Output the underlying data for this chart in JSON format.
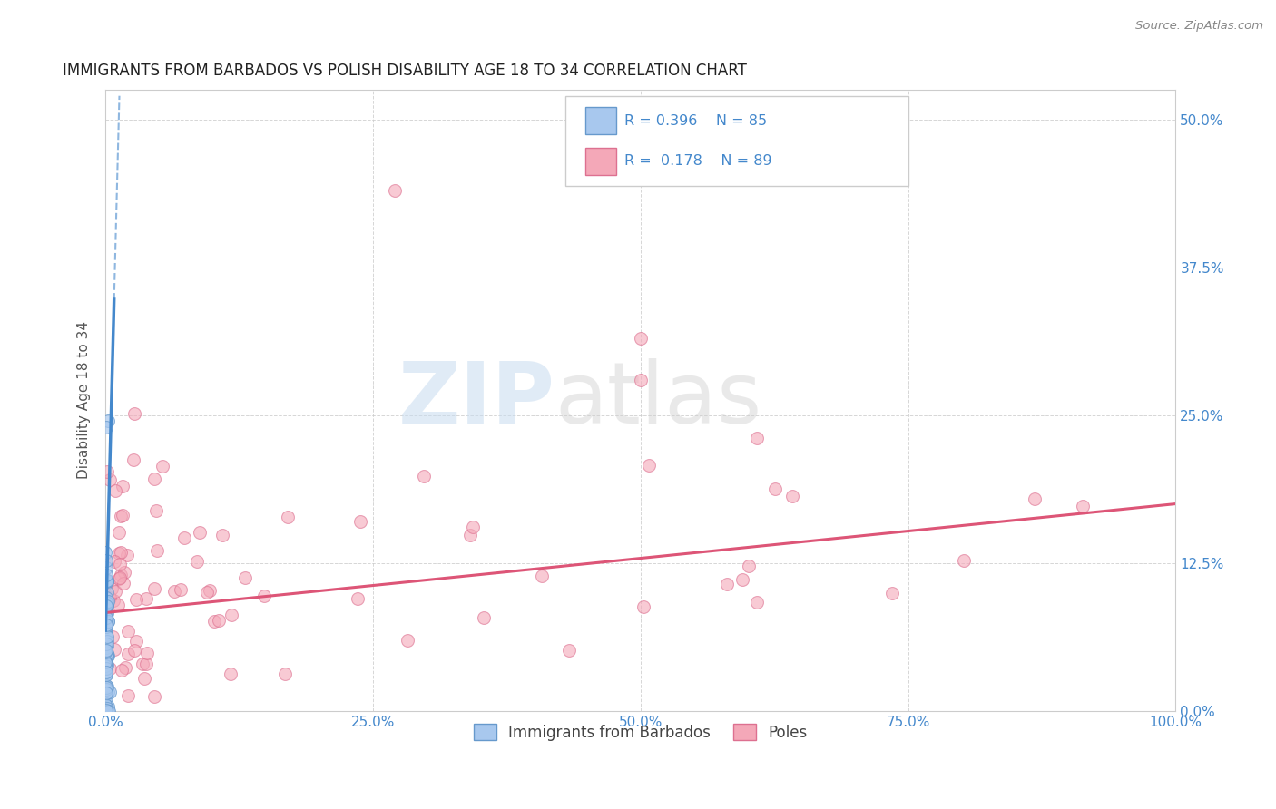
{
  "title": "IMMIGRANTS FROM BARBADOS VS POLISH DISABILITY AGE 18 TO 34 CORRELATION CHART",
  "source": "Source: ZipAtlas.com",
  "ylabel": "Disability Age 18 to 34",
  "xlim": [
    0.0,
    1.0
  ],
  "ylim": [
    0.0,
    0.525
  ],
  "x_ticks": [
    0.0,
    0.25,
    0.5,
    0.75,
    1.0
  ],
  "x_tick_labels": [
    "0.0%",
    "25.0%",
    "50.0%",
    "75.0%",
    "100.0%"
  ],
  "y_ticks": [
    0.0,
    0.125,
    0.25,
    0.375,
    0.5
  ],
  "y_tick_labels": [
    "0.0%",
    "12.5%",
    "25.0%",
    "37.5%",
    "50.0%"
  ],
  "barbados_color": "#A8C8EE",
  "barbados_edge": "#6699CC",
  "poles_color": "#F4A8B8",
  "poles_edge": "#DD7090",
  "trend_barbados_color": "#4488CC",
  "trend_poles_color": "#DD5577",
  "legend_barbados_label": "Immigrants from Barbados",
  "legend_poles_label": "Poles",
  "r_barbados": "0.396",
  "n_barbados": "85",
  "r_poles": "0.178",
  "n_poles": "89",
  "watermark_zip": "ZIP",
  "watermark_atlas": "atlas",
  "background_color": "#FFFFFF",
  "grid_color": "#CCCCCC",
  "title_color": "#222222",
  "axis_label_color": "#555555",
  "tick_color": "#4488CC",
  "legend_text_color": "#4488CC"
}
